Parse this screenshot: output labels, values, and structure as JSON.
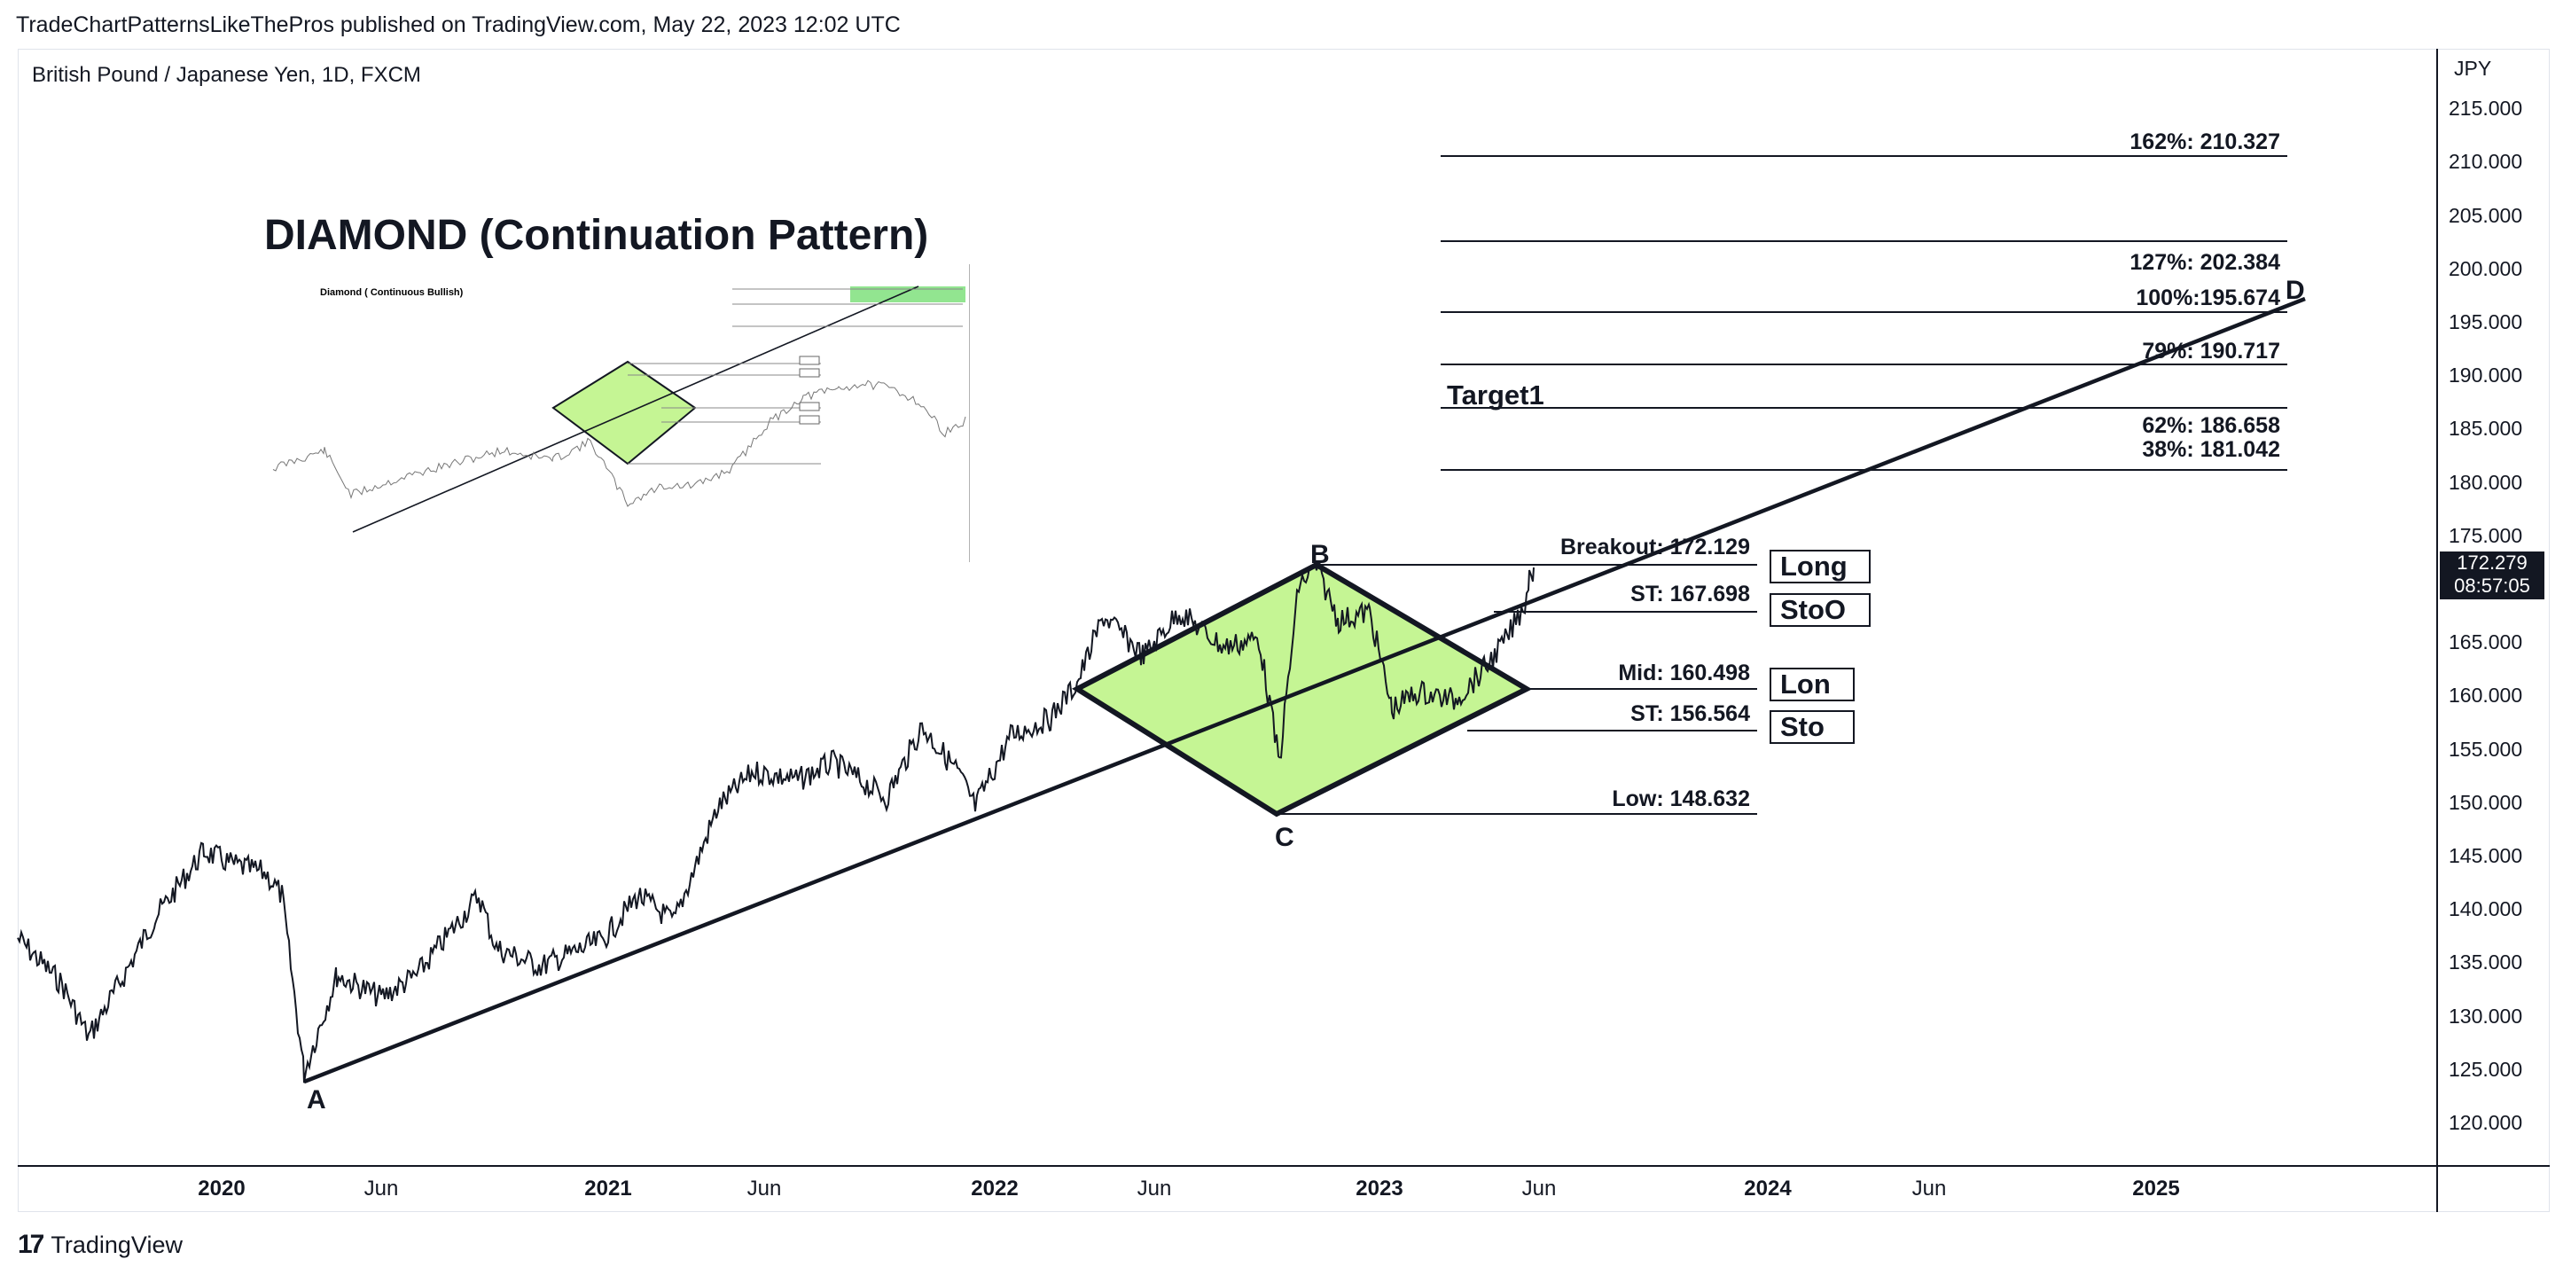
{
  "header": {
    "published": "TradeChartPatternsLikeThePros published on TradingView.com, May 22, 2023 12:02 UTC"
  },
  "chart": {
    "symbol": "British Pound / Japanese Yen, 1D, FXCM",
    "currency": "JPY",
    "last_price": "172.279",
    "countdown": "08:57:05",
    "title": "DIAMOND (Continuation Pattern)",
    "inset_title": "Diamond ( Continuous Bullish)",
    "target_label": "Target1",
    "fib_levels": [
      {
        "label": "162%: 210.327",
        "value": 210.327
      },
      {
        "label": "127%: 202.384",
        "value": 202.384
      },
      {
        "label": "100%:195.674",
        "value": 195.674
      },
      {
        "label": "79%: 190.717",
        "value": 190.717
      },
      {
        "label": "62%: 186.658",
        "value": 186.658
      },
      {
        "label": "38%: 181.042",
        "value": 181.042
      }
    ],
    "pattern_levels": [
      {
        "label": "Breakout: 172.129",
        "value": 172.129
      },
      {
        "label": "ST: 167.698",
        "value": 167.698
      },
      {
        "label": "Mid: 160.498",
        "value": 160.498
      },
      {
        "label": "ST: 156.564",
        "value": 156.564
      },
      {
        "label": "Low: 148.632",
        "value": 148.632
      }
    ],
    "order_boxes": [
      "Long",
      "StoO",
      "Lon",
      "Sto"
    ],
    "points": [
      "A",
      "B",
      "C",
      "D"
    ],
    "y_ticks": [
      "215.000",
      "210.000",
      "205.000",
      "200.000",
      "195.000",
      "190.000",
      "185.000",
      "180.000",
      "175.000",
      "165.000",
      "160.000",
      "155.000",
      "150.000",
      "145.000",
      "140.000",
      "135.000",
      "130.000",
      "125.000",
      "120.000"
    ],
    "x_ticks": [
      {
        "label": "2020",
        "year": true
      },
      {
        "label": "Jun",
        "year": false
      },
      {
        "label": "2021",
        "year": true
      },
      {
        "label": "Jun",
        "year": false
      },
      {
        "label": "2022",
        "year": true
      },
      {
        "label": "Jun",
        "year": false
      },
      {
        "label": "2023",
        "year": true
      },
      {
        "label": "Jun",
        "year": false
      },
      {
        "label": "2024",
        "year": true
      },
      {
        "label": "Jun",
        "year": false
      },
      {
        "label": "2025",
        "year": true
      }
    ],
    "pattern_fill": "#c5f594",
    "line_color": "#131722"
  },
  "footer": {
    "brand": "TradingView"
  }
}
